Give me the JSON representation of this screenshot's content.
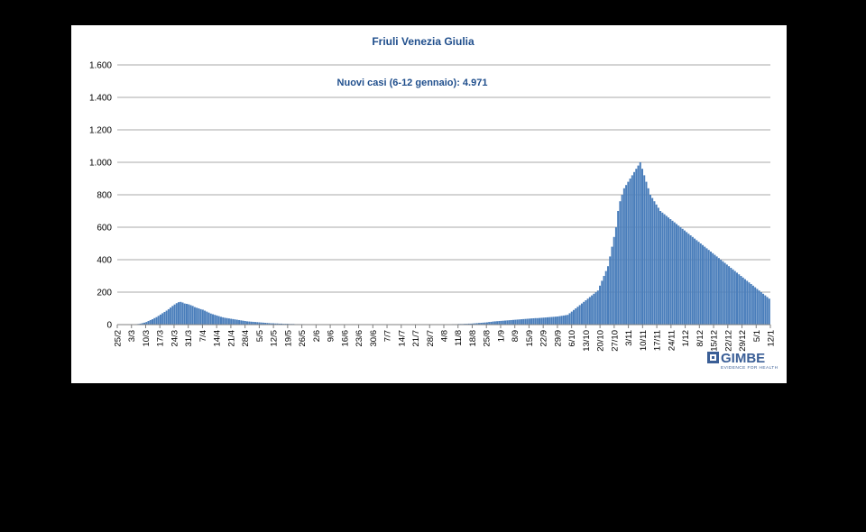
{
  "chart_data": {
    "type": "bar",
    "title": "Friuli Venezia Giulia",
    "annotation": "Nuovi casi (6-12 gennaio): 4.971",
    "ylim": [
      0,
      1600
    ],
    "yticks": [
      0,
      200,
      400,
      600,
      800,
      1000,
      1200,
      1400,
      1600
    ],
    "ytick_labels": [
      "0",
      "200",
      "400",
      "600",
      "800",
      "1.000",
      "1.200",
      "1.400",
      "1.600"
    ],
    "grid": true,
    "color": "#4a7ebb",
    "x_tick_labels": [
      "25/2",
      "3/3",
      "10/3",
      "17/3",
      "24/3",
      "31/3",
      "7/4",
      "14/4",
      "21/4",
      "28/4",
      "5/5",
      "12/5",
      "19/5",
      "26/5",
      "2/6",
      "9/6",
      "16/6",
      "23/6",
      "30/6",
      "7/7",
      "14/7",
      "21/7",
      "28/7",
      "4/8",
      "11/8",
      "18/8",
      "25/8",
      "1/9",
      "8/9",
      "15/9",
      "22/9",
      "29/9",
      "6/10",
      "13/10",
      "20/10",
      "27/10",
      "3/11",
      "10/11",
      "17/11",
      "24/11",
      "1/12",
      "8/12",
      "15/12",
      "22/12",
      "29/12",
      "5/1",
      "12/1"
    ],
    "series": [
      {
        "values": [
          0,
          0,
          0,
          0,
          0,
          0,
          0,
          1,
          2,
          3,
          4,
          6,
          9,
          12,
          16,
          22,
          28,
          33,
          40,
          46,
          54,
          62,
          70,
          78,
          86,
          95,
          105,
          115,
          124,
          132,
          138,
          140,
          136,
          130,
          128,
          125,
          120,
          115,
          108,
          104,
          100,
          95,
          92,
          86,
          80,
          74,
          68,
          64,
          60,
          56,
          52,
          48,
          45,
          42,
          40,
          38,
          36,
          34,
          32,
          30,
          28,
          26,
          24,
          22,
          20,
          19,
          18,
          17,
          16,
          15,
          14,
          13,
          12,
          11,
          10,
          9,
          8,
          8,
          7,
          7,
          6,
          6,
          5,
          5,
          5,
          4,
          4,
          4,
          3,
          3,
          3,
          3,
          3,
          2,
          2,
          2,
          2,
          2,
          2,
          2,
          2,
          1,
          1,
          1,
          1,
          1,
          1,
          1,
          1,
          1,
          1,
          1,
          1,
          1,
          1,
          1,
          1,
          1,
          1,
          1,
          1,
          1,
          1,
          1,
          1,
          1,
          1,
          1,
          1,
          1,
          1,
          1,
          1,
          1,
          1,
          1,
          1,
          1,
          1,
          1,
          1,
          1,
          1,
          1,
          1,
          1,
          1,
          1,
          1,
          1,
          1,
          1,
          1,
          1,
          1,
          1,
          1,
          1,
          1,
          1,
          1,
          2,
          2,
          2,
          2,
          2,
          3,
          3,
          3,
          4,
          4,
          4,
          5,
          5,
          6,
          6,
          7,
          8,
          9,
          10,
          11,
          12,
          13,
          14,
          16,
          17,
          19,
          20,
          21,
          22,
          23,
          24,
          25,
          26,
          27,
          28,
          29,
          30,
          31,
          32,
          33,
          34,
          35,
          36,
          37,
          38,
          39,
          40,
          40,
          41,
          42,
          43,
          44,
          45,
          46,
          47,
          48,
          49,
          50,
          52,
          54,
          56,
          58,
          60,
          70,
          80,
          90,
          100,
          110,
          120,
          130,
          140,
          150,
          160,
          170,
          180,
          190,
          200,
          210,
          240,
          270,
          300,
          330,
          360,
          420,
          480,
          540,
          600,
          700,
          760,
          800,
          840,
          860,
          880,
          900,
          920,
          940,
          960,
          980,
          1000,
          960,
          920,
          880,
          840,
          800,
          780,
          760,
          740,
          720,
          700,
          690,
          680,
          670,
          660,
          650,
          640,
          630,
          620,
          610,
          600,
          590,
          580,
          570,
          560,
          550,
          540,
          530,
          520,
          510,
          500,
          490,
          480,
          470,
          460,
          450,
          440,
          430,
          420,
          410,
          400,
          390,
          380,
          370,
          360,
          350,
          340,
          330,
          320,
          310,
          300,
          290,
          280,
          270,
          260,
          250,
          240,
          230,
          220,
          210,
          200,
          190,
          180,
          170,
          160
        ]
      }
    ]
  },
  "logo": {
    "name": "GIMBE",
    "tagline": "EVIDENCE FOR HEALTH"
  }
}
